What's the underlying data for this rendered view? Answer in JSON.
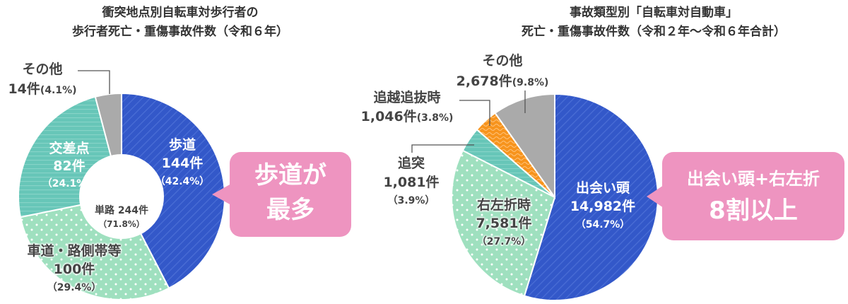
{
  "chart_data": [
    {
      "type": "pie",
      "donut": true,
      "title": [
        "衝突地点別自転車対歩行者の",
        "歩行者死亡・重傷事故件数（令和６年）"
      ],
      "center_label": {
        "name": "単路 244件",
        "pct": "（71.8%）"
      },
      "slices": [
        {
          "name": "歩道",
          "count": "144件",
          "pct": "（42.4%）",
          "value": 42.4,
          "color": "#3358c9",
          "pattern": "diagonal-stripes"
        },
        {
          "name": "車道・路側帯等",
          "count": "100件",
          "pct": "（29.4%）",
          "value": 29.4,
          "color": "#9fe0bf",
          "pattern": "dots"
        },
        {
          "name": "交差点",
          "count": "82件",
          "pct": "（24.1%）",
          "value": 24.1,
          "color": "#67c6b8",
          "pattern": "horizontal-stripes"
        },
        {
          "name": "その他",
          "count": "14件",
          "pct": "(4.1%)",
          "value": 4.1,
          "color": "#aaaaaa",
          "pattern": "solid"
        }
      ],
      "callout": [
        "歩道が",
        "最多"
      ],
      "callout_color": "#ee94c0"
    },
    {
      "type": "pie",
      "donut": false,
      "title": [
        "事故類型別「自転車対自動車」",
        "死亡・重傷事故件数（令和２年〜令和６年合計）"
      ],
      "slices": [
        {
          "name": "出会い頭",
          "count": "14,982件",
          "pct": "（54.7%）",
          "value": 54.7,
          "color": "#3358c9",
          "pattern": "diagonal-stripes"
        },
        {
          "name": "右左折時",
          "count": "7,581件",
          "pct": "（27.7%）",
          "value": 27.7,
          "color": "#9fe0bf",
          "pattern": "dots"
        },
        {
          "name": "追突",
          "count": "1,081件",
          "pct": "（3.9%）",
          "value": 3.9,
          "color": "#67c6b8",
          "pattern": "horizontal-stripes"
        },
        {
          "name": "追越追抜時",
          "count": "1,046件",
          "pct": "(3.8%)",
          "value": 3.8,
          "color": "#f7941d",
          "pattern": "waves"
        },
        {
          "name": "その他",
          "count": "2,678件",
          "pct": "(9.8%)",
          "value": 9.8,
          "color": "#aaaaaa",
          "pattern": "solid"
        }
      ],
      "callout": [
        "出会い頭+右左折",
        "8割以上"
      ],
      "callout_color": "#ee94c0"
    }
  ]
}
